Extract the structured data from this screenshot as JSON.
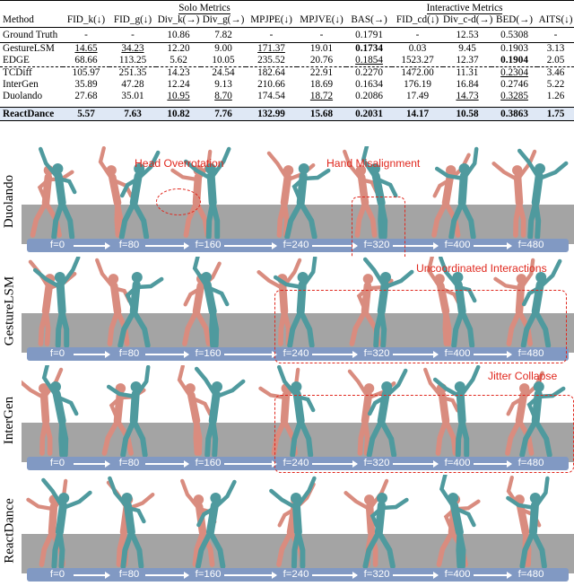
{
  "table": {
    "groups": {
      "solo": "Solo Metrics",
      "interactive": "Interactive Metrics"
    },
    "headers": [
      "Method",
      "FID_k(↓)",
      "FID_g(↓)",
      "Div_k(→)",
      "Div_g(→)",
      "MPJPE(↓)",
      "MPJVE(↓)",
      "BAS(→)",
      "FID_cd(↓)",
      "Div_c-d(→)",
      "BED(→)",
      "AITS(↓)"
    ],
    "rows": [
      {
        "method": "Ground Truth",
        "cells": [
          "-",
          "-",
          "10.86",
          "7.82",
          "-",
          "-",
          "0.1791",
          "-",
          "12.53",
          "0.5308",
          "-"
        ]
      },
      {
        "method": "GestureLSM",
        "cells": [
          "14.65",
          "34.23",
          "12.20",
          "9.00",
          "171.37",
          "19.01",
          "0.1734",
          "0.03",
          "9.45",
          "0.1903",
          "3.13"
        ]
      },
      {
        "method": "EDGE",
        "cells": [
          "68.66",
          "113.25",
          "5.62",
          "10.05",
          "235.52",
          "20.76",
          "0.1854",
          "1523.27",
          "12.37",
          "0.1904",
          "2.05"
        ]
      },
      {
        "method": "TCDiff",
        "cells": [
          "105.97",
          "251.35",
          "14.23",
          "24.54",
          "182.64",
          "22.91",
          "0.2270",
          "1472.00",
          "11.31",
          "0.2304",
          "3.46"
        ]
      },
      {
        "method": "InterGen",
        "cells": [
          "35.89",
          "47.28",
          "12.24",
          "9.13",
          "210.66",
          "18.69",
          "0.1634",
          "176.19",
          "16.84",
          "0.2746",
          "5.22"
        ]
      },
      {
        "method": "Duolando",
        "cells": [
          "27.68",
          "35.01",
          "10.95",
          "8.70",
          "174.54",
          "18.72",
          "0.2086",
          "17.49",
          "14.73",
          "0.3285",
          "1.26"
        ]
      },
      {
        "method": "ReactDance",
        "cells": [
          "5.57",
          "7.63",
          "10.82",
          "7.76",
          "132.99",
          "15.68",
          "0.2031",
          "14.17",
          "10.58",
          "0.3863",
          "1.75"
        ]
      }
    ]
  },
  "figure": {
    "frame_labels": [
      "f=0",
      "f=80",
      "f=160",
      "f=240",
      "f=320",
      "f=400",
      "f=480"
    ],
    "rows": [
      {
        "label": "Duolando",
        "annotations": [
          "Head Overrotation",
          "Hand Misalignment"
        ]
      },
      {
        "label": "GestureLSM",
        "annotations": [
          "Uncoordinated Interactions"
        ]
      },
      {
        "label": "InterGen",
        "annotations": [
          "Jitter Collapse"
        ]
      },
      {
        "label": "ReactDance",
        "annotations": []
      }
    ],
    "colors": {
      "leader": "#4f9a9e",
      "follower": "#d98c7f",
      "floor": "#a4a4a4",
      "timeline": "#8199c3",
      "annotation": "#e0281e",
      "highlight_row": "#dfe8f5"
    }
  }
}
